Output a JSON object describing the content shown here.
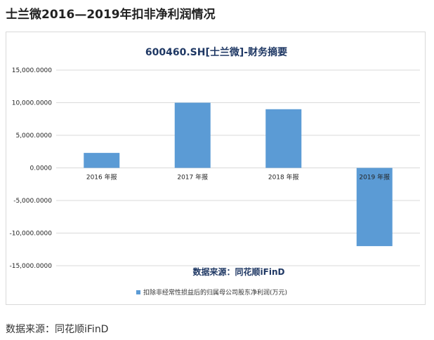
{
  "page": {
    "title": "士兰微2016—2019年扣非净利润情况",
    "footer_source": "数据来源：同花顺iFinD"
  },
  "chart_data": {
    "type": "bar",
    "title": "600460.SH[士兰微]-财务摘要",
    "categories": [
      "2016 年报",
      "2017 年报",
      "2018 年报",
      "2019 年报"
    ],
    "series": [
      {
        "name": "扣除非经常性损益后的归属母公司股东净利润(万元)",
        "values": [
          2300,
          10000,
          9000,
          -12000
        ]
      }
    ],
    "y_ticks": [
      "15,000.0000",
      "10,000.0000",
      "5,000.0000",
      "0.0000",
      "-5,000.0000",
      "-10,000.0000",
      "-15,000.0000"
    ],
    "ylim": [
      -15000,
      15000
    ],
    "source_note": "数据来源：同花顺iFinD",
    "grid": true,
    "legend_position": "bottom",
    "colors": {
      "bar": "#5b9bd5",
      "grid": "#d9d9d9",
      "title": "#1f3864"
    }
  }
}
